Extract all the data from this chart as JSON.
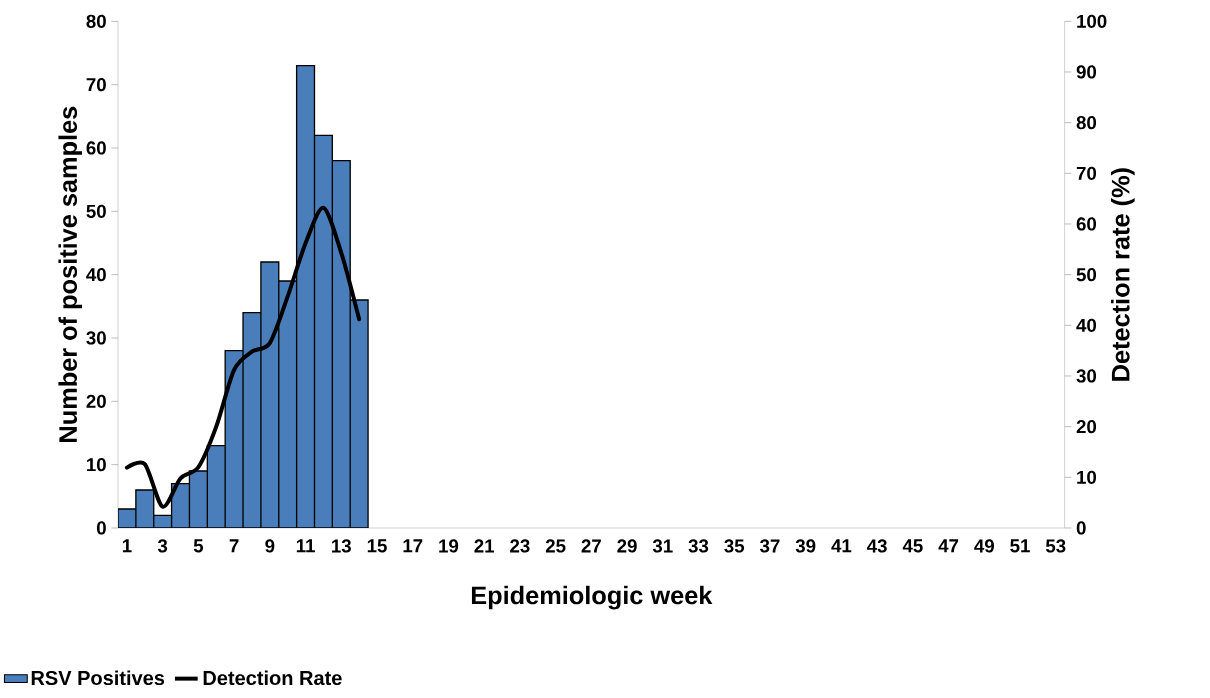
{
  "chart_data": {
    "type": "bar",
    "xlabel": "Epidemiologic week",
    "ylabel": "Number of positive samples",
    "y2label": "Detection rate (%)",
    "categories": [
      "1",
      null,
      "3",
      null,
      "5",
      null,
      "7",
      null,
      "9",
      null,
      "11",
      null,
      "13",
      null,
      "15",
      null,
      "17",
      null,
      "19",
      null,
      "21",
      null,
      "23",
      null,
      "25",
      null,
      "27",
      null,
      "29",
      null,
      "31",
      null,
      "33",
      null,
      "35",
      null,
      "37",
      null,
      "39",
      null,
      "41",
      null,
      "43",
      null,
      "45",
      null,
      "47",
      null,
      "49",
      null,
      "51",
      null,
      "53"
    ],
    "series": [
      {
        "name": "RSV Positives",
        "color": "#4a7ebb",
        "values": [
          3,
          6,
          2,
          7,
          9,
          13,
          28,
          34,
          42,
          39,
          73,
          62,
          58,
          36,
          null,
          null,
          null,
          null,
          null,
          null,
          null,
          null,
          null,
          null,
          null,
          null,
          null,
          null,
          null,
          null,
          null,
          null,
          null,
          null,
          null,
          null,
          null,
          null,
          null,
          null,
          null,
          null,
          null,
          null,
          null,
          null,
          null,
          null,
          null,
          null,
          null,
          null,
          null
        ]
      },
      {
        "name": "Detection Rate",
        "type": "line",
        "axis": "y2",
        "color": "#000000",
        "values": [
          11.9,
          12.6,
          4.2,
          9.8,
          12,
          20,
          31.2,
          34.8,
          36.5,
          45.7,
          56.2,
          63.2,
          54.3,
          41.2,
          null,
          null,
          null,
          null,
          null,
          null,
          null,
          null,
          null,
          null,
          null,
          null,
          null,
          null,
          null,
          null,
          null,
          null,
          null,
          null,
          null,
          null,
          null,
          null,
          null,
          null,
          null,
          null,
          null,
          null,
          null,
          null,
          null,
          null,
          null,
          null,
          null,
          null,
          null
        ]
      }
    ],
    "ylim": [
      0,
      80
    ],
    "yticks": [
      0,
      10,
      20,
      30,
      40,
      50,
      60,
      70,
      80
    ],
    "y2lim": [
      0,
      100
    ],
    "y2ticks": [
      0,
      10,
      20,
      30,
      40,
      50,
      60,
      70,
      80,
      90,
      100
    ],
    "grid": false,
    "legend": "bottom left",
    "marker": "none",
    "line_style": "solid"
  }
}
